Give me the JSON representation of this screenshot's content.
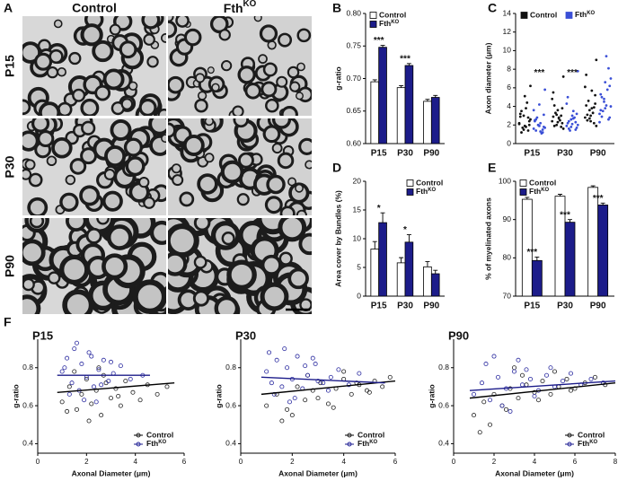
{
  "panel_a": {
    "panel": "A",
    "columns": [
      "Control",
      "FthKO"
    ],
    "rows": [
      "P15",
      "P30",
      "P90"
    ]
  },
  "chart_data": [
    {
      "type": "bar",
      "panel": "B",
      "ylabel": "g-ratio",
      "categories": [
        "P15",
        "P30",
        "P90"
      ],
      "ylim": [
        0.6,
        0.8
      ],
      "yticks": [
        {
          "value": 0.6,
          "label": "0.60"
        },
        {
          "value": 0.65,
          "label": "0.65"
        },
        {
          "value": 0.7,
          "label": "0.70"
        },
        {
          "value": 0.75,
          "label": "0.75"
        },
        {
          "value": 0.8,
          "label": "0.80"
        }
      ],
      "legend": "top-left",
      "series": [
        {
          "name": "Control",
          "color": "#ffffff",
          "values": [
            0.695,
            0.686,
            0.665
          ],
          "errors": [
            0.003,
            0.003,
            0.003
          ]
        },
        {
          "name": "FthKO",
          "color": "#1c1c8a",
          "values": [
            0.748,
            0.72,
            0.671
          ],
          "errors": [
            0.003,
            0.003,
            0.003
          ]
        }
      ],
      "annotations": [
        "***",
        "***",
        null
      ]
    },
    {
      "type": "dot",
      "panel": "C",
      "ylabel": "Axon diameter (μm)",
      "categories": [
        "P15",
        "P30",
        "P90"
      ],
      "ylim": [
        0,
        14
      ],
      "yticks": [
        0,
        2,
        4,
        6,
        8,
        10,
        12,
        14
      ],
      "legend": "top",
      "series": [
        {
          "name": "Control",
          "color": "#111111",
          "values": [
            [
              2.1,
              1.5,
              2.8,
              3.2,
              1.9,
              2.4,
              1.2,
              3.8,
              2.6,
              1.7,
              4.4,
              2.2,
              3.0,
              1.4,
              2.9,
              5.1,
              2.0,
              3.5,
              1.8,
              6.2
            ],
            [
              2.4,
              3.1,
              1.8,
              2.9,
              3.6,
              2.2,
              4.1,
              2.7,
              1.6,
              3.3,
              2.5,
              4.8,
              2.0,
              3.0,
              5.5,
              2.3,
              3.8,
              1.9,
              2.8,
              7.2
            ],
            [
              2.8,
              3.6,
              2.2,
              4.1,
              3.0,
              5.2,
              2.5,
              3.8,
              1.9,
              4.6,
              3.3,
              6.1,
              2.7,
              3.9,
              7.4,
              2.4,
              4.3,
              3.1,
              5.7,
              9.0
            ]
          ]
        },
        {
          "name": "FthKO",
          "color": "#3a4fd6",
          "values": [
            [
              1.6,
              2.0,
              1.2,
              2.5,
              1.9,
              3.1,
              1.4,
              2.2,
              1.7,
              2.8,
              1.1,
              3.6,
              2.0,
              1.5,
              2.4,
              4.2,
              1.8,
              2.6,
              1.3,
              5.8
            ],
            [
              1.9,
              2.6,
              1.5,
              2.2,
              3.0,
              1.7,
              2.4,
              3.5,
              2.0,
              1.4,
              2.8,
              4.3,
              1.8,
              2.3,
              5.0,
              2.1,
              3.2,
              1.6,
              2.7,
              7.8
            ],
            [
              3.2,
              4.5,
              2.6,
              5.3,
              3.8,
              6.2,
              2.9,
              4.1,
              7.0,
              3.5,
              5.8,
              2.3,
              4.8,
              8.1,
              3.6,
              6.6,
              2.8,
              5.0,
              9.4,
              4.0
            ]
          ]
        }
      ],
      "annotations": [
        "***",
        "***",
        null
      ]
    },
    {
      "type": "bar",
      "panel": "D",
      "ylabel": "Area cover by Bundles (%)",
      "categories": [
        "P15",
        "P30",
        "P90"
      ],
      "ylim": [
        0,
        20
      ],
      "yticks": [
        0,
        5,
        10,
        15,
        20
      ],
      "legend": "top-right",
      "series": [
        {
          "name": "Control",
          "color": "#ffffff",
          "values": [
            8.2,
            5.8,
            5.1
          ],
          "errors": [
            1.3,
            0.9,
            0.9
          ]
        },
        {
          "name": "FthKO",
          "color": "#1c1c8a",
          "values": [
            12.8,
            9.4,
            3.9
          ],
          "errors": [
            1.7,
            1.3,
            0.6
          ]
        }
      ],
      "annotations": [
        "*",
        "*",
        null
      ]
    },
    {
      "type": "bar",
      "panel": "E",
      "ylabel": "% of myelinated axons",
      "categories": [
        "P15",
        "P30",
        "P90"
      ],
      "ylim": [
        70,
        100
      ],
      "yticks": [
        70,
        80,
        90,
        100
      ],
      "legend": "top-left",
      "series": [
        {
          "name": "Control",
          "color": "#ffffff",
          "values": [
            95.3,
            96.1,
            98.4
          ],
          "errors": [
            0.5,
            0.5,
            0.4
          ]
        },
        {
          "name": "FthKO",
          "color": "#1c1c8a",
          "values": [
            79.3,
            89.3,
            93.8
          ],
          "errors": [
            0.9,
            0.7,
            0.5
          ]
        }
      ],
      "annotations": [
        "***",
        "***",
        "***"
      ]
    },
    {
      "type": "scatter",
      "panel": "F",
      "title": "P15",
      "xlabel": "Axonal Diameter (μm)",
      "ylabel": "g-ratio",
      "xlim": [
        0,
        6
      ],
      "xticks": [
        0,
        2,
        4,
        6
      ],
      "ylim": [
        0.35,
        0.95
      ],
      "yticks": [
        0.4,
        0.6,
        0.8
      ],
      "legend": "bottom-right",
      "series": [
        {
          "name": "Control",
          "color": "#222222",
          "x": [
            1.0,
            1.3,
            1.6,
            1.8,
            2.0,
            2.2,
            2.4,
            2.6,
            2.8,
            3.0,
            3.2,
            3.4,
            3.6,
            3.9,
            4.2,
            4.5,
            4.9,
            5.3,
            1.5,
            2.1,
            2.7,
            3.3,
            1.2,
            2.5
          ],
          "values": [
            0.62,
            0.7,
            0.58,
            0.66,
            0.74,
            0.61,
            0.68,
            0.55,
            0.72,
            0.64,
            0.69,
            0.6,
            0.73,
            0.67,
            0.63,
            0.71,
            0.66,
            0.7,
            0.78,
            0.52,
            0.76,
            0.65,
            0.57,
            0.8
          ],
          "fit": {
            "x": [
              0.8,
              5.6
            ],
            "values": [
              0.67,
              0.72
            ]
          }
        },
        {
          "name": "FthKO",
          "color": "#2b2ba0",
          "x": [
            1.0,
            1.2,
            1.4,
            1.5,
            1.7,
            1.8,
            2.0,
            2.1,
            2.3,
            2.5,
            2.7,
            2.9,
            3.1,
            3.4,
            3.8,
            4.3,
            1.3,
            1.6,
            1.9,
            2.2,
            2.6,
            1.1,
            2.4,
            3.0
          ],
          "values": [
            0.78,
            0.85,
            0.72,
            0.9,
            0.68,
            0.82,
            0.75,
            0.88,
            0.7,
            0.79,
            0.84,
            0.73,
            0.77,
            0.81,
            0.74,
            0.76,
            0.66,
            0.93,
            0.63,
            0.86,
            0.71,
            0.8,
            0.62,
            0.83
          ],
          "fit": {
            "x": [
              0.8,
              4.6
            ],
            "values": [
              0.76,
              0.76
            ]
          }
        }
      ]
    },
    {
      "type": "scatter",
      "title": "P30",
      "xlabel": "Axonal Diameter (μm)",
      "ylabel": "g-ratio",
      "xlim": [
        0,
        6
      ],
      "xticks": [
        0,
        2,
        4,
        6
      ],
      "ylim": [
        0.35,
        0.95
      ],
      "yticks": [
        0.4,
        0.6,
        0.8
      ],
      "legend": "bottom-right",
      "series": [
        {
          "name": "Control",
          "color": "#222222",
          "x": [
            1.0,
            1.4,
            1.8,
            2.2,
            2.5,
            2.8,
            3.1,
            3.4,
            3.7,
            4.0,
            4.3,
            4.6,
            4.9,
            5.2,
            5.5,
            5.8,
            2.0,
            3.0,
            4.0,
            5.0,
            1.6,
            2.6,
            3.6,
            4.5
          ],
          "values": [
            0.6,
            0.66,
            0.58,
            0.7,
            0.63,
            0.68,
            0.72,
            0.61,
            0.69,
            0.74,
            0.66,
            0.71,
            0.68,
            0.73,
            0.7,
            0.75,
            0.55,
            0.64,
            0.78,
            0.67,
            0.52,
            0.76,
            0.59,
            0.72
          ],
          "fit": {
            "x": [
              0.8,
              6.0
            ],
            "values": [
              0.66,
              0.73
            ]
          }
        },
        {
          "name": "FthKO",
          "color": "#2b2ba0",
          "x": [
            1.0,
            1.2,
            1.4,
            1.6,
            1.8,
            2.0,
            2.2,
            2.4,
            2.6,
            2.9,
            3.2,
            3.5,
            3.8,
            4.2,
            4.6,
            1.3,
            1.7,
            2.1,
            2.5,
            3.0,
            1.1,
            1.9,
            2.8,
            3.4
          ],
          "values": [
            0.78,
            0.72,
            0.84,
            0.7,
            0.8,
            0.74,
            0.86,
            0.69,
            0.76,
            0.82,
            0.72,
            0.75,
            0.79,
            0.71,
            0.77,
            0.66,
            0.9,
            0.64,
            0.81,
            0.73,
            0.88,
            0.62,
            0.85,
            0.68
          ],
          "fit": {
            "x": [
              0.8,
              5.6
            ],
            "values": [
              0.75,
              0.72
            ]
          }
        }
      ]
    },
    {
      "type": "scatter",
      "title": "P90",
      "xlabel": "Axonal Diameter (μm)",
      "ylabel": "g-ratio",
      "xlim": [
        0,
        8
      ],
      "xticks": [
        0,
        2,
        4,
        6,
        8
      ],
      "ylim": [
        0.35,
        0.95
      ],
      "yticks": [
        0.4,
        0.6,
        0.8
      ],
      "legend": "bottom-right",
      "series": [
        {
          "name": "Control",
          "color": "#222222",
          "x": [
            1.0,
            1.5,
            2.0,
            2.4,
            2.8,
            3.2,
            3.6,
            4.0,
            4.4,
            4.8,
            5.2,
            5.6,
            6.0,
            6.5,
            7.0,
            7.5,
            1.8,
            2.6,
            3.4,
            4.2,
            5.0,
            5.8,
            1.3,
            3.0
          ],
          "values": [
            0.55,
            0.62,
            0.66,
            0.6,
            0.69,
            0.64,
            0.71,
            0.67,
            0.73,
            0.66,
            0.7,
            0.74,
            0.69,
            0.72,
            0.75,
            0.71,
            0.5,
            0.58,
            0.76,
            0.63,
            0.78,
            0.68,
            0.46,
            0.8
          ],
          "fit": {
            "x": [
              0.8,
              8.0
            ],
            "values": [
              0.64,
              0.72
            ]
          }
        },
        {
          "name": "FthKO",
          "color": "#2b2ba0",
          "x": [
            1.0,
            1.4,
            1.8,
            2.2,
            2.6,
            3.0,
            3.4,
            3.8,
            4.2,
            4.6,
            5.0,
            5.4,
            5.8,
            6.3,
            6.8,
            7.4,
            1.6,
            2.4,
            3.2,
            4.0,
            4.8,
            2.0,
            2.8,
            3.6
          ],
          "values": [
            0.66,
            0.72,
            0.63,
            0.75,
            0.69,
            0.78,
            0.71,
            0.74,
            0.68,
            0.76,
            0.7,
            0.73,
            0.77,
            0.71,
            0.74,
            0.72,
            0.82,
            0.6,
            0.84,
            0.65,
            0.8,
            0.86,
            0.57,
            0.79
          ],
          "fit": {
            "x": [
              0.8,
              8.0
            ],
            "values": [
              0.68,
              0.73
            ]
          }
        }
      ]
    }
  ]
}
